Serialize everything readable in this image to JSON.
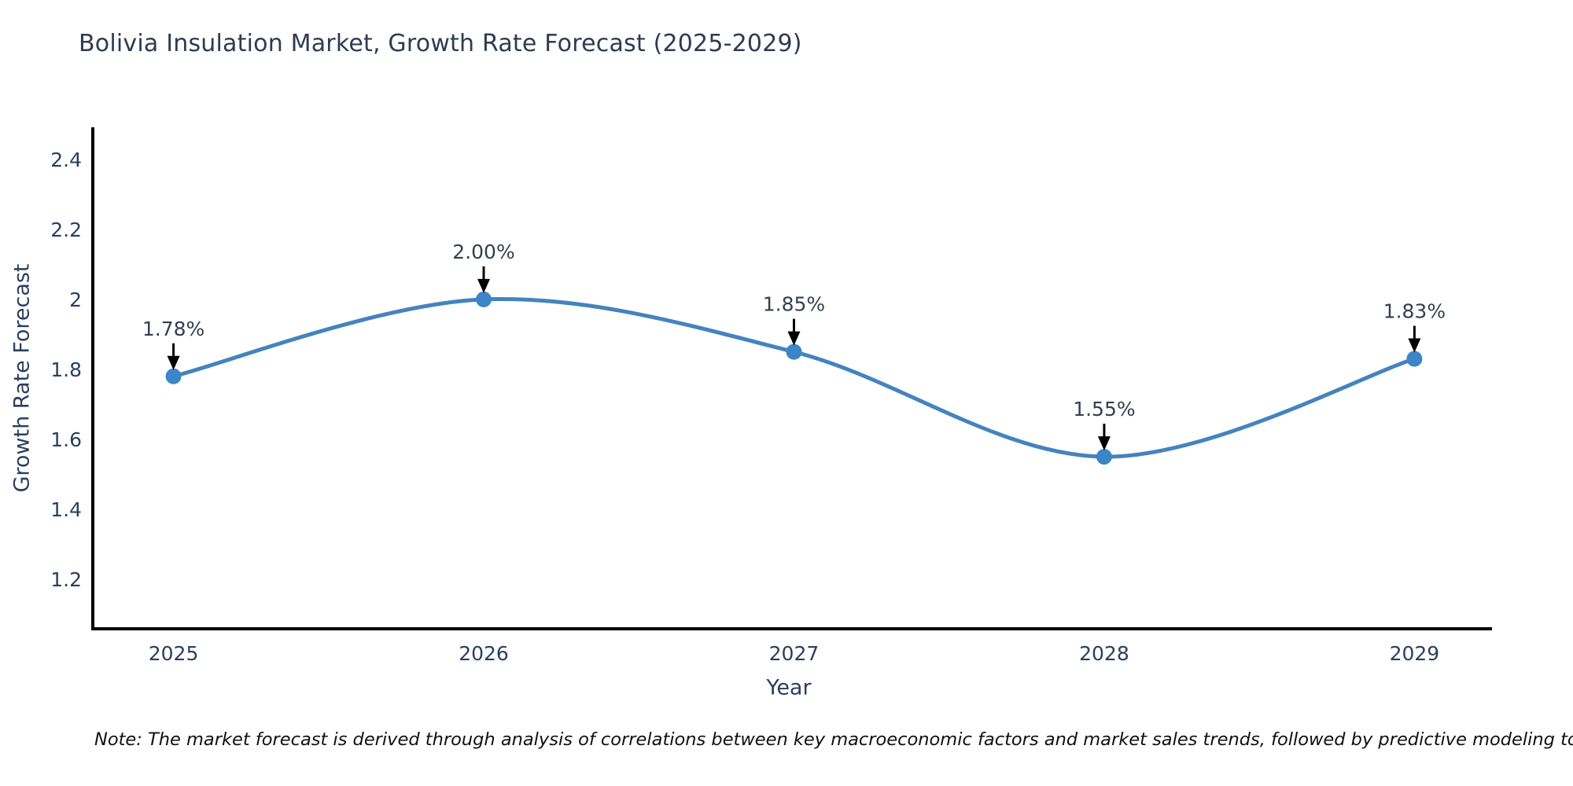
{
  "chart_data": {
    "type": "line",
    "title": "Bolivia Insulation Market, Growth Rate Forecast (2025-2029)",
    "xlabel": "Year",
    "ylabel": "Growth Rate Forecast",
    "x": [
      2025,
      2026,
      2027,
      2028,
      2029
    ],
    "series": [
      {
        "name": "Growth Rate Forecast",
        "values": [
          1.78,
          2.0,
          1.85,
          1.55,
          1.83
        ],
        "point_labels": [
          "1.78%",
          "2.00%",
          "1.85%",
          "1.55%",
          "1.83%"
        ]
      }
    ],
    "x_ticks": [
      2025,
      2026,
      2027,
      2028,
      2029
    ],
    "y_ticks": [
      1.2,
      1.4,
      1.6,
      1.8,
      2,
      2.2,
      2.4
    ],
    "xlim": [
      2024.74,
      2029.25
    ],
    "ylim": [
      1.058,
      2.492
    ],
    "grid": false,
    "legend": false,
    "smooth_spline": true,
    "colors": {
      "line": "#4583bd",
      "marker": "#3b85c8",
      "axis": "#000000",
      "tick_text": "#2a3f5f",
      "annotation_text": "#333f4f",
      "annotation_arrow": "#000000"
    }
  },
  "note": "Note: The market forecast is derived through analysis of correlations between key macroeconomic factors and market sales trends, followed by predictive modeling to project future sales"
}
